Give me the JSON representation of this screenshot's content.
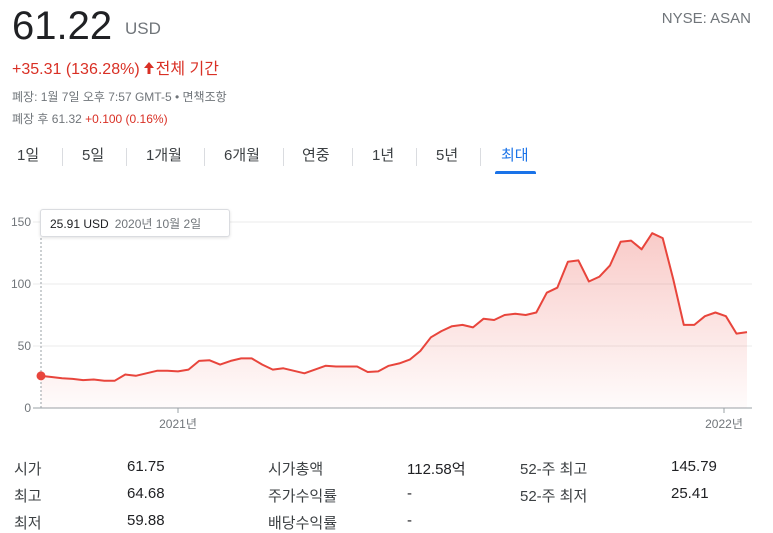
{
  "quote": {
    "price": "61.22",
    "currency": "USD",
    "exchange": "NYSE: ASAN",
    "change": "+35.31 (136.28%)",
    "change_period": "전체 기간",
    "close_info": "폐장: 1월 7일 오후 7:57 GMT-5 • 면책조항",
    "after_label": "폐장 후 61.32",
    "after_delta": "+0.100 (0.16%)"
  },
  "tabs": [
    {
      "label": "1일"
    },
    {
      "label": "5일"
    },
    {
      "label": "1개월"
    },
    {
      "label": "6개월"
    },
    {
      "label": "연중"
    },
    {
      "label": "1년"
    },
    {
      "label": "5년"
    },
    {
      "label": "최대"
    }
  ],
  "active_tab": "최대",
  "tooltip": {
    "value": "25.91 USD",
    "date": "2020년 10월 2일"
  },
  "colors": {
    "line": "#e8453c",
    "up": "#d93025",
    "accent": "#1a73e8"
  },
  "chart_data": {
    "type": "area",
    "x_ticks": [
      "2021년",
      "2022년"
    ],
    "y_ticks": [
      "150",
      "100",
      "50",
      "0"
    ],
    "ylim": [
      0,
      150
    ],
    "series": [
      {
        "values": [
          25.91,
          25,
          24,
          23.5,
          22.5,
          23,
          22,
          22,
          27,
          26,
          28,
          30,
          30,
          29.5,
          31,
          38,
          38.5,
          35,
          38,
          40,
          40,
          35,
          31,
          32,
          30,
          28,
          31,
          34,
          33.5,
          33.5,
          33.5,
          29,
          29.5,
          34,
          36,
          39,
          46,
          57,
          62,
          66,
          67,
          65,
          72,
          71,
          75,
          76,
          75,
          77,
          93,
          97,
          118,
          119,
          102,
          106,
          115,
          134,
          135,
          128,
          141,
          137,
          104,
          67,
          67,
          74,
          77,
          74,
          60,
          61.22
        ]
      }
    ]
  },
  "stats": [
    {
      "label": "시가",
      "value": "61.75"
    },
    {
      "label": "최고",
      "value": "64.68"
    },
    {
      "label": "최저",
      "value": "59.88"
    },
    {
      "label": "시가총액",
      "value": "112.58억"
    },
    {
      "label": "주가수익률",
      "value": "-"
    },
    {
      "label": "배당수익률",
      "value": "-"
    },
    {
      "label": "52-주 최고",
      "value": "145.79"
    },
    {
      "label": "52-주 최저",
      "value": "25.41"
    }
  ]
}
